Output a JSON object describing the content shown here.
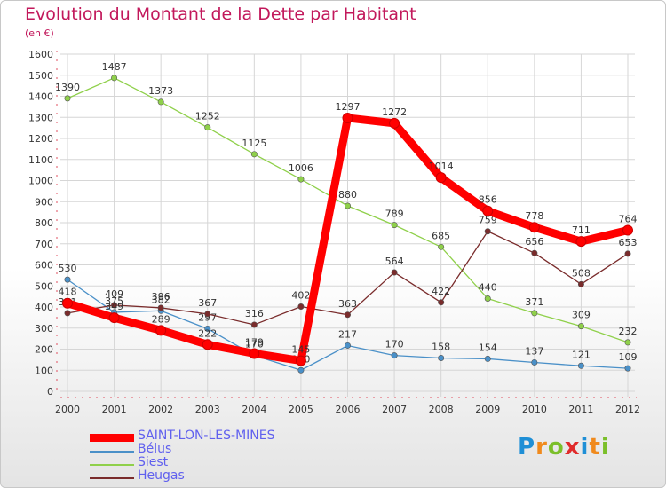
{
  "title": "Evolution du Montant de la Dette par Habitant",
  "subtitle": "(en €)",
  "logo_text": "Proxiti",
  "chart_data": {
    "type": "line",
    "x": [
      "2000",
      "2001",
      "2002",
      "2003",
      "2004",
      "2005",
      "2006",
      "2007",
      "2008",
      "2009",
      "2010",
      "2011",
      "2012"
    ],
    "ylim": [
      0,
      1600
    ],
    "yticks": [
      0,
      100,
      200,
      300,
      400,
      500,
      600,
      700,
      800,
      900,
      1000,
      1100,
      1200,
      1300,
      1400,
      1500,
      1600
    ],
    "grid": true,
    "legend_position": "bottom-left",
    "series": [
      {
        "name": "SAINT-LON-LES-MINES",
        "color": "#ff0000",
        "values": [
          418,
          349,
          289,
          222,
          179,
          145,
          1297,
          1272,
          1014,
          856,
          778,
          711,
          764
        ],
        "labels": [
          "418",
          "349",
          "289",
          "222",
          "179",
          "145",
          "1297",
          "1272",
          "1014",
          "856",
          "778",
          "711",
          "764"
        ]
      },
      {
        "name": "Bélus",
        "color": "#4a90c8",
        "values": [
          530,
          375,
          382,
          297,
          170,
          100,
          217,
          170,
          158,
          154,
          137,
          121,
          109
        ],
        "labels": [
          "530",
          "375",
          "382",
          "297",
          "170",
          "100",
          "217",
          "170",
          "158",
          "154",
          "137",
          "121",
          "109"
        ]
      },
      {
        "name": "Siest",
        "color": "#8fd04a",
        "values": [
          1390,
          1487,
          1373,
          1252,
          1125,
          1006,
          880,
          789,
          685,
          440,
          371,
          309,
          232
        ],
        "labels": [
          "1390",
          "1487",
          "1373",
          "1252",
          "1125",
          "1006",
          "880",
          "789",
          "685",
          "440",
          "371",
          "309",
          "232"
        ]
      },
      {
        "name": "Heugas",
        "color": "#7a2c2c",
        "values": [
          371,
          409,
          396,
          367,
          316,
          402,
          363,
          564,
          422,
          759,
          656,
          508,
          653
        ],
        "labels": [
          "371",
          "409",
          "396",
          "367",
          "316",
          "402",
          "363",
          "564",
          "422",
          "759",
          "656",
          "508",
          "653"
        ]
      }
    ]
  }
}
